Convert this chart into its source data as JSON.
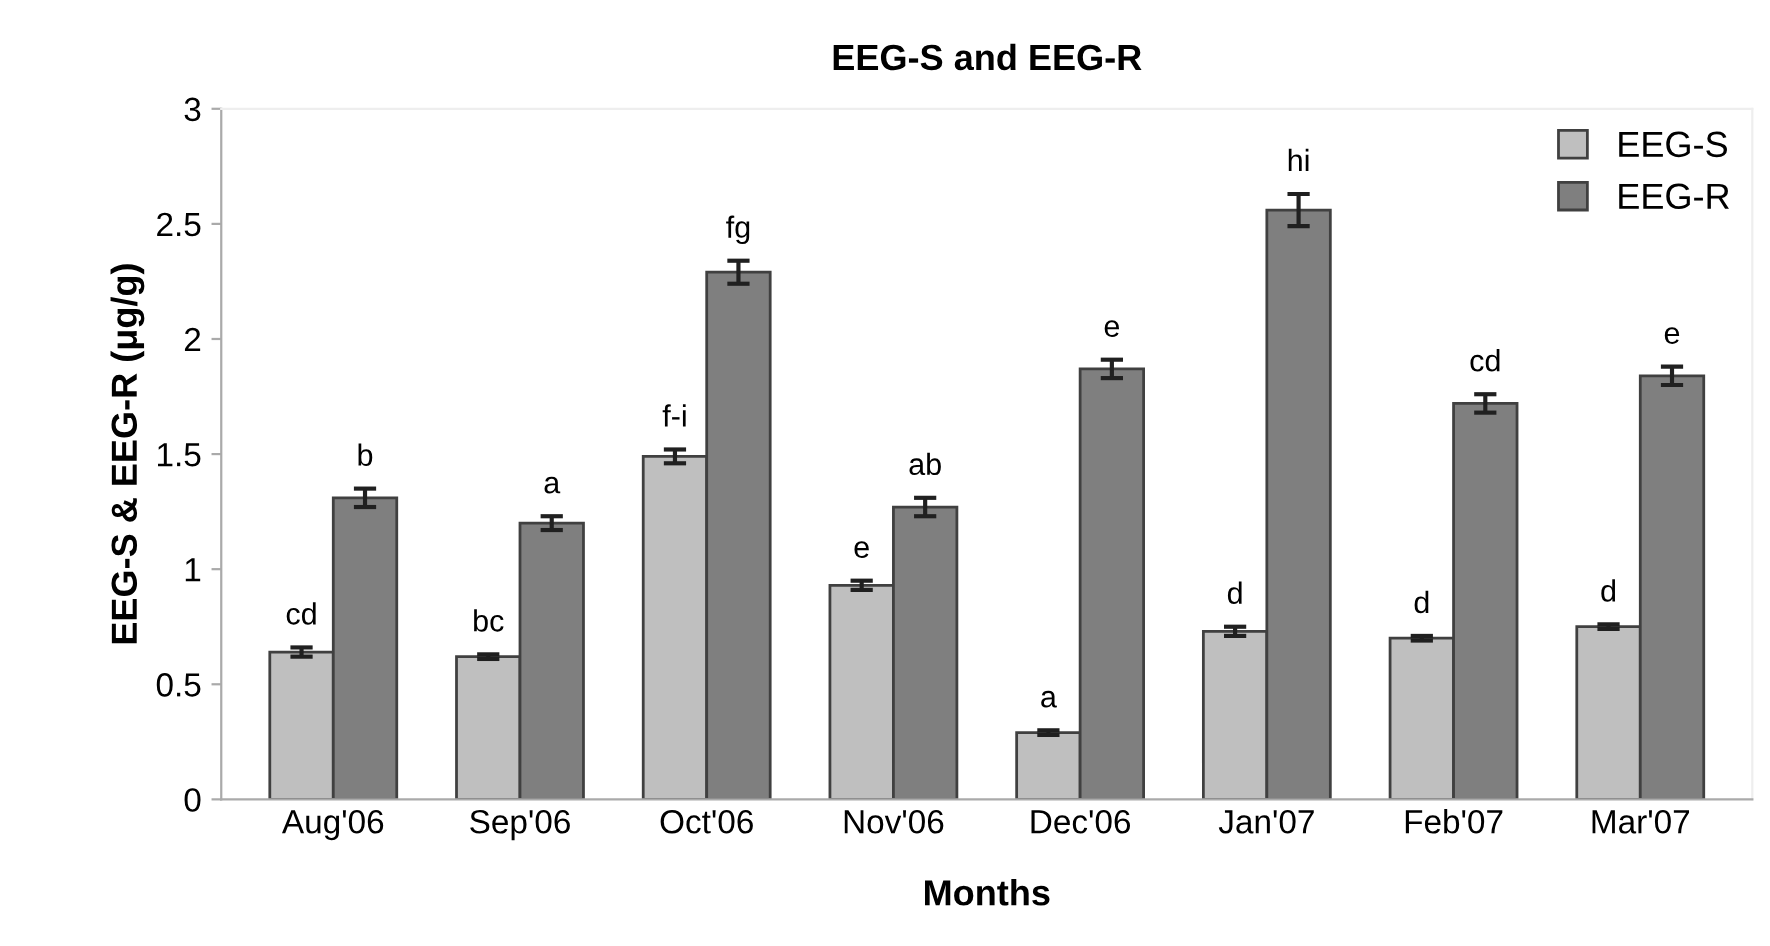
{
  "chart_data": {
    "type": "bar",
    "title": "EEG-S and EEG-R",
    "xlabel": "Months",
    "ylabel": "EEG-S & EEG-R (μg/g)",
    "categories": [
      "Aug'06",
      "Sep'06",
      "Oct'06",
      "Nov'06",
      "Dec'06",
      "Jan'07",
      "Feb'07",
      "Mar'07"
    ],
    "series": [
      {
        "name": "EEG-S",
        "color": "#bfbfbf",
        "values": [
          0.64,
          0.62,
          1.49,
          0.93,
          0.29,
          0.73,
          0.7,
          0.75
        ],
        "errors": [
          0.02,
          0.01,
          0.03,
          0.02,
          0.01,
          0.02,
          0.01,
          0.01
        ]
      },
      {
        "name": "EEG-R",
        "color": "#7f7f7f",
        "values": [
          1.31,
          1.2,
          2.29,
          1.27,
          1.87,
          2.56,
          1.72,
          1.84
        ],
        "errors": [
          0.04,
          0.03,
          0.05,
          0.04,
          0.04,
          0.07,
          0.04,
          0.04
        ]
      }
    ],
    "annotations": [
      {
        "text": "cd",
        "x": "Aug'06",
        "y": 0.64
      },
      {
        "text": "b",
        "x": "Aug'06",
        "y": 1.31
      },
      {
        "text": "bc",
        "x": "Sep'06",
        "y": 0.62
      },
      {
        "text": "a",
        "x": "Sep'06",
        "y": 1.2
      },
      {
        "text": "f-i",
        "x": "Oct'06",
        "y": 1.49
      },
      {
        "text": "fg",
        "x": "Oct'06",
        "y": 2.29
      },
      {
        "text": "e",
        "x": "Nov'06",
        "y": 0.93
      },
      {
        "text": "ab",
        "x": "Nov'06",
        "y": 1.27
      },
      {
        "text": "a",
        "x": "Dec'06",
        "y": 0.29
      },
      {
        "text": "e",
        "x": "Dec'06",
        "y": 1.87
      },
      {
        "text": "d",
        "x": "Jan'07",
        "y": 0.73
      },
      {
        "text": "hi",
        "x": "Jan'07",
        "y": 2.56
      },
      {
        "text": "d",
        "x": "Feb'07",
        "y": 0.7
      },
      {
        "text": "cd",
        "x": "Feb'07",
        "y": 1.72
      },
      {
        "text": "d",
        "x": "Mar'07",
        "y": 0.75
      },
      {
        "text": "e",
        "x": "Mar'07",
        "y": 1.84
      }
    ],
    "ylim": [
      0,
      3
    ],
    "yticks": [
      0,
      0.5,
      1,
      1.5,
      2,
      2.5,
      3
    ],
    "grid": false,
    "legend": "top right"
  }
}
